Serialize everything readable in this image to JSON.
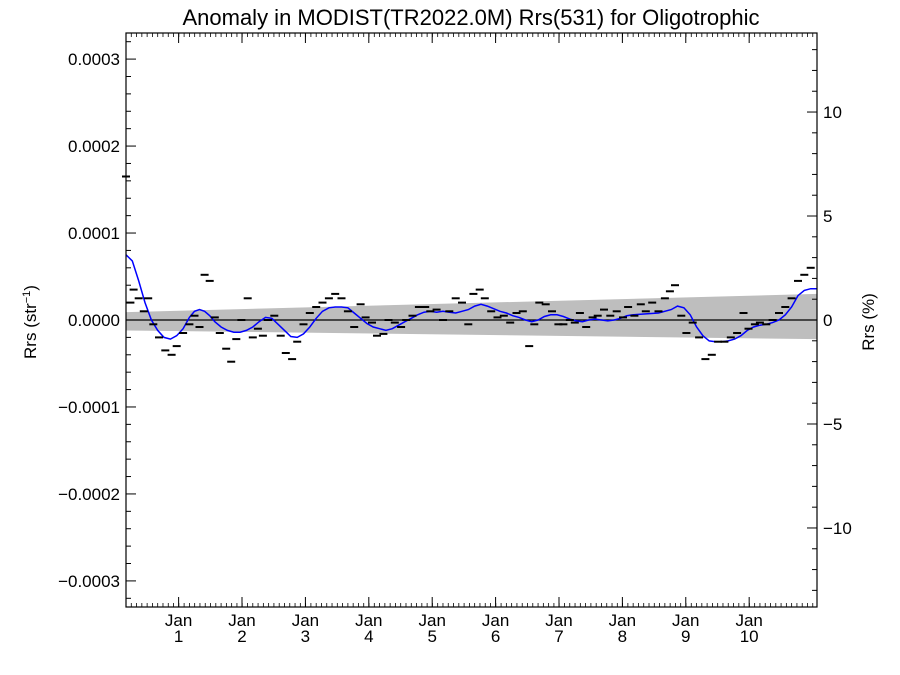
{
  "chart_data": {
    "type": "scatter",
    "title": "Anomaly in MODIST(TR2022.0M) Rrs(531) for Oligotrophic",
    "ylabel_left_main": "Rrs (str",
    "ylabel_left_sup": "−1",
    "ylabel_left_close": ")",
    "ylabel_right": "Rrs (%)",
    "xlabel": "",
    "x_units": "years from start (tick marks at January of each year)",
    "xlim": [
      0.0,
      10.9
    ],
    "ylim": [
      -0.00033,
      0.00033
    ],
    "ylim_right_pct": [
      -13.8,
      13.8
    ],
    "grid": false,
    "legend": "none",
    "x_ticks": [
      {
        "x": 0.83,
        "line1": "Jan",
        "line2": "1"
      },
      {
        "x": 1.83,
        "line1": "Jan",
        "line2": "2"
      },
      {
        "x": 2.83,
        "line1": "Jan",
        "line2": "3"
      },
      {
        "x": 3.83,
        "line1": "Jan",
        "line2": "4"
      },
      {
        "x": 4.83,
        "line1": "Jan",
        "line2": "5"
      },
      {
        "x": 5.83,
        "line1": "Jan",
        "line2": "6"
      },
      {
        "x": 6.83,
        "line1": "Jan",
        "line2": "7"
      },
      {
        "x": 7.83,
        "line1": "Jan",
        "line2": "8"
      },
      {
        "x": 8.83,
        "line1": "Jan",
        "line2": "9"
      },
      {
        "x": 9.83,
        "line1": "Jan",
        "line2": "10"
      }
    ],
    "y_ticks_left": [
      {
        "v": 0.0003,
        "label": "0.0003"
      },
      {
        "v": 0.0002,
        "label": "0.0002"
      },
      {
        "v": 0.0001,
        "label": "0.0001"
      },
      {
        "v": 0.0,
        "label": "0.0000"
      },
      {
        "v": -0.0001,
        "label": "−0.0001"
      },
      {
        "v": -0.0002,
        "label": "−0.0002"
      },
      {
        "v": -0.0003,
        "label": "−0.0003"
      }
    ],
    "y_ticks_right": [
      {
        "v": 10,
        "label": "10"
      },
      {
        "v": 5,
        "label": "5"
      },
      {
        "v": 0,
        "label": "0"
      },
      {
        "v": -5,
        "label": "−5"
      },
      {
        "v": -10,
        "label": "−10"
      }
    ],
    "colors": {
      "band": "#bebebe",
      "smooth_line": "#0000ff",
      "points": "#000000",
      "zero_line": "#000000",
      "axes": "#000000"
    },
    "points": [
      [
        0.0,
        0.000165
      ],
      [
        0.07,
        2e-05
      ],
      [
        0.12,
        3.5e-05
      ],
      [
        0.2,
        2.5e-05
      ],
      [
        0.28,
        1e-05
      ],
      [
        0.35,
        2.5e-05
      ],
      [
        0.43,
        -5e-06
      ],
      [
        0.52,
        -2e-05
      ],
      [
        0.62,
        -3.5e-05
      ],
      [
        0.72,
        -4e-05
      ],
      [
        0.8,
        -3e-05
      ],
      [
        0.9,
        -1.5e-05
      ],
      [
        1.0,
        -5e-06
      ],
      [
        1.08,
        5e-06
      ],
      [
        1.16,
        -8e-06
      ],
      [
        1.24,
        5.2e-05
      ],
      [
        1.32,
        4.5e-05
      ],
      [
        1.4,
        3e-06
      ],
      [
        1.48,
        -1.5e-05
      ],
      [
        1.58,
        -3.3e-05
      ],
      [
        1.66,
        -4.8e-05
      ],
      [
        1.74,
        -2.2e-05
      ],
      [
        1.82,
        0.0
      ],
      [
        1.92,
        2.5e-05
      ],
      [
        2.0,
        -2e-05
      ],
      [
        2.08,
        -1e-05
      ],
      [
        2.16,
        -1.8e-05
      ],
      [
        2.24,
        0.0
      ],
      [
        2.34,
        5e-06
      ],
      [
        2.44,
        -1.8e-05
      ],
      [
        2.52,
        -3.8e-05
      ],
      [
        2.62,
        -4.5e-05
      ],
      [
        2.7,
        -2.5e-05
      ],
      [
        2.8,
        -5e-06
      ],
      [
        2.9,
        8e-06
      ],
      [
        3.0,
        1.5e-05
      ],
      [
        3.1,
        2e-05
      ],
      [
        3.2,
        2.5e-05
      ],
      [
        3.3,
        3e-05
      ],
      [
        3.4,
        2.5e-05
      ],
      [
        3.5,
        1e-05
      ],
      [
        3.6,
        -8e-06
      ],
      [
        3.7,
        1.8e-05
      ],
      [
        3.78,
        3e-06
      ],
      [
        3.88,
        -3e-06
      ],
      [
        3.96,
        -1.8e-05
      ],
      [
        4.06,
        -1.6e-05
      ],
      [
        4.14,
        0.0
      ],
      [
        4.24,
        -3e-06
      ],
      [
        4.34,
        -8e-06
      ],
      [
        4.42,
        0.0
      ],
      [
        4.52,
        5e-06
      ],
      [
        4.62,
        1.5e-05
      ],
      [
        4.72,
        1.5e-05
      ],
      [
        4.8,
        1e-05
      ],
      [
        4.9,
        1.2e-05
      ],
      [
        5.0,
        0.0
      ],
      [
        5.1,
        1e-05
      ],
      [
        5.2,
        2.5e-05
      ],
      [
        5.3,
        2e-05
      ],
      [
        5.4,
        -5e-06
      ],
      [
        5.48,
        3e-05
      ],
      [
        5.58,
        3.5e-05
      ],
      [
        5.66,
        2.5e-05
      ],
      [
        5.76,
        1e-05
      ],
      [
        5.86,
        3e-06
      ],
      [
        5.96,
        5e-06
      ],
      [
        6.06,
        -3e-06
      ],
      [
        6.16,
        8e-06
      ],
      [
        6.26,
        1e-05
      ],
      [
        6.36,
        -3e-05
      ],
      [
        6.44,
        -5e-06
      ],
      [
        6.52,
        2e-05
      ],
      [
        6.62,
        1.8e-05
      ],
      [
        6.72,
        1e-05
      ],
      [
        6.82,
        -5e-06
      ],
      [
        6.9,
        -5e-06
      ],
      [
        7.0,
        0.0
      ],
      [
        7.08,
        -3e-06
      ],
      [
        7.16,
        8e-06
      ],
      [
        7.26,
        -8e-06
      ],
      [
        7.36,
        3e-06
      ],
      [
        7.44,
        5e-06
      ],
      [
        7.54,
        1.2e-05
      ],
      [
        7.64,
        5e-06
      ],
      [
        7.74,
        1e-05
      ],
      [
        7.84,
        3e-06
      ],
      [
        7.92,
        1.5e-05
      ],
      [
        8.02,
        5e-06
      ],
      [
        8.12,
        1.8e-05
      ],
      [
        8.2,
        1e-05
      ],
      [
        8.3,
        2e-05
      ],
      [
        8.4,
        1e-05
      ],
      [
        8.5,
        2.5e-05
      ],
      [
        8.58,
        3.3e-05
      ],
      [
        8.66,
        4e-05
      ],
      [
        8.76,
        5e-06
      ],
      [
        8.84,
        -1.5e-05
      ],
      [
        8.94,
        -3e-06
      ],
      [
        9.04,
        -2e-05
      ],
      [
        9.14,
        -4.5e-05
      ],
      [
        9.24,
        -4e-05
      ],
      [
        9.34,
        -2.5e-05
      ],
      [
        9.44,
        -2.5e-05
      ],
      [
        9.54,
        -2e-05
      ],
      [
        9.64,
        -1.5e-05
      ],
      [
        9.74,
        8e-06
      ],
      [
        9.82,
        -1e-05
      ],
      [
        9.92,
        -5e-06
      ],
      [
        10.0,
        -3e-06
      ],
      [
        10.1,
        -5e-06
      ],
      [
        10.2,
        0.0
      ],
      [
        10.3,
        8e-06
      ],
      [
        10.4,
        1.5e-05
      ],
      [
        10.5,
        2.5e-05
      ],
      [
        10.6,
        4.5e-05
      ],
      [
        10.7,
        5.2e-05
      ],
      [
        10.8,
        6e-05
      ]
    ],
    "smooth_line": [
      [
        0.0,
        7.5e-05
      ],
      [
        0.1,
        6.8e-05
      ],
      [
        0.2,
        4.5e-05
      ],
      [
        0.3,
        2e-05
      ],
      [
        0.4,
        0.0
      ],
      [
        0.5,
        -1.2e-05
      ],
      [
        0.6,
        -2e-05
      ],
      [
        0.7,
        -2.2e-05
      ],
      [
        0.8,
        -1.8e-05
      ],
      [
        0.9,
        -1e-05
      ],
      [
        1.0,
        3e-06
      ],
      [
        1.08,
        1e-05
      ],
      [
        1.16,
        1.2e-05
      ],
      [
        1.24,
        1e-05
      ],
      [
        1.32,
        5e-06
      ],
      [
        1.4,
        -2e-06
      ],
      [
        1.5,
        -8e-06
      ],
      [
        1.6,
        -1.2e-05
      ],
      [
        1.7,
        -1.4e-05
      ],
      [
        1.8,
        -1.4e-05
      ],
      [
        1.9,
        -1.2e-05
      ],
      [
        2.0,
        -8e-06
      ],
      [
        2.1,
        -2e-06
      ],
      [
        2.2,
        3e-06
      ],
      [
        2.3,
        2e-06
      ],
      [
        2.4,
        -5e-06
      ],
      [
        2.5,
        -1.2e-05
      ],
      [
        2.6,
        -1.9e-05
      ],
      [
        2.7,
        -2e-05
      ],
      [
        2.8,
        -1.6e-05
      ],
      [
        2.9,
        -8e-06
      ],
      [
        3.0,
        2e-06
      ],
      [
        3.1,
        1e-05
      ],
      [
        3.2,
        1.4e-05
      ],
      [
        3.3,
        1.5e-05
      ],
      [
        3.4,
        1.5e-05
      ],
      [
        3.5,
        1.4e-05
      ],
      [
        3.6,
        8e-06
      ],
      [
        3.7,
        2e-06
      ],
      [
        3.8,
        -4e-06
      ],
      [
        3.9,
        -8e-06
      ],
      [
        4.0,
        -1e-05
      ],
      [
        4.1,
        -1.2e-05
      ],
      [
        4.2,
        -1e-05
      ],
      [
        4.3,
        -6e-06
      ],
      [
        4.4,
        -2e-06
      ],
      [
        4.5,
        2e-06
      ],
      [
        4.6,
        6e-06
      ],
      [
        4.7,
        9e-06
      ],
      [
        4.8,
        1e-05
      ],
      [
        4.9,
        9e-06
      ],
      [
        5.0,
        1e-05
      ],
      [
        5.1,
        9e-06
      ],
      [
        5.2,
        8e-06
      ],
      [
        5.3,
        1e-05
      ],
      [
        5.4,
        1.2e-05
      ],
      [
        5.5,
        1.6e-05
      ],
      [
        5.6,
        1.8e-05
      ],
      [
        5.7,
        1.6e-05
      ],
      [
        5.8,
        1.3e-05
      ],
      [
        5.9,
        1e-05
      ],
      [
        6.0,
        8e-06
      ],
      [
        6.1,
        5e-06
      ],
      [
        6.2,
        3e-06
      ],
      [
        6.3,
        0.0
      ],
      [
        6.4,
        -2e-06
      ],
      [
        6.5,
        0.0
      ],
      [
        6.6,
        4e-06
      ],
      [
        6.7,
        6e-06
      ],
      [
        6.8,
        6e-06
      ],
      [
        6.9,
        4e-06
      ],
      [
        7.0,
        1e-06
      ],
      [
        7.1,
        -1e-06
      ],
      [
        7.2,
        -2e-06
      ],
      [
        7.3,
        0.0
      ],
      [
        7.4,
        1e-06
      ],
      [
        7.5,
        0.0
      ],
      [
        7.6,
        -1e-06
      ],
      [
        7.7,
        0.0
      ],
      [
        7.8,
        2e-06
      ],
      [
        7.9,
        5e-06
      ],
      [
        8.0,
        6e-06
      ],
      [
        8.2,
        7e-06
      ],
      [
        8.4,
        8e-06
      ],
      [
        8.6,
        1.2e-05
      ],
      [
        8.7,
        1.6e-05
      ],
      [
        8.8,
        1.4e-05
      ],
      [
        8.9,
        6e-06
      ],
      [
        9.0,
        -8e-06
      ],
      [
        9.1,
        -1.8e-05
      ],
      [
        9.2,
        -2.4e-05
      ],
      [
        9.3,
        -2.5e-05
      ],
      [
        9.4,
        -2.5e-05
      ],
      [
        9.5,
        -2.4e-05
      ],
      [
        9.6,
        -2.2e-05
      ],
      [
        9.7,
        -1.8e-05
      ],
      [
        9.8,
        -1.2e-05
      ],
      [
        9.9,
        -8e-06
      ],
      [
        10.0,
        -6e-06
      ],
      [
        10.1,
        -5e-06
      ],
      [
        10.2,
        -3e-06
      ],
      [
        10.3,
        0.0
      ],
      [
        10.4,
        6e-06
      ],
      [
        10.5,
        1.5e-05
      ],
      [
        10.6,
        2.8e-05
      ],
      [
        10.7,
        3.4e-05
      ],
      [
        10.8,
        3.6e-05
      ],
      [
        10.9,
        3.6e-05
      ]
    ],
    "confidence_band": {
      "x": [
        0.0,
        10.9
      ],
      "upper": [
        9e-06,
        3e-05
      ],
      "lower": [
        -1.2e-05,
        -2.2e-05
      ]
    },
    "zero_line": 0.0
  }
}
